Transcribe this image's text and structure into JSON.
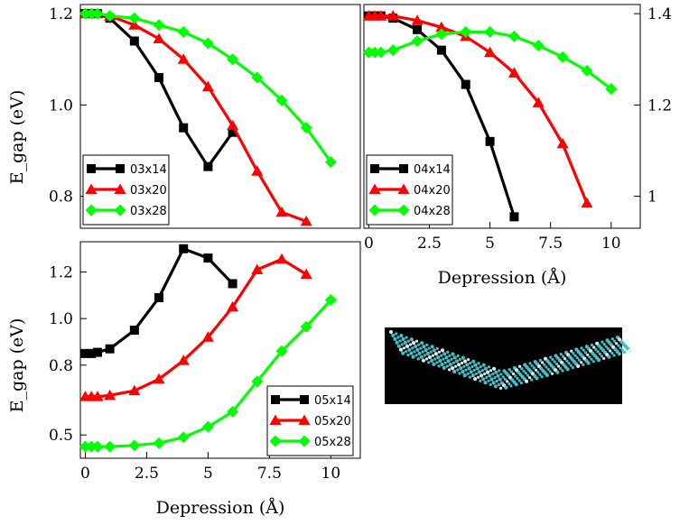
{
  "chart_data": [
    {
      "type": "line",
      "panel": "top-left",
      "title": "",
      "xlabel": "",
      "ylabel": "E_gap (eV)",
      "xlim": [
        -0.2,
        11.2
      ],
      "ylim": [
        0.73,
        1.22
      ],
      "x_ticks": [],
      "y_ticks": [
        0.8,
        1.0,
        1.2
      ],
      "y_tick_labels": [
        "0.8",
        "1.0",
        "1.2"
      ],
      "grid": false,
      "legend_position": "bottom-left",
      "series": [
        {
          "name": "03x14",
          "color": "#000000",
          "marker": "square",
          "x": [
            0,
            0.25,
            0.5,
            1,
            2,
            3,
            4,
            5,
            6
          ],
          "y": [
            1.2,
            1.2,
            1.2,
            1.19,
            1.14,
            1.06,
            0.95,
            0.865,
            0.94
          ]
        },
        {
          "name": "03x20",
          "color": "#ff0000",
          "marker": "triangle",
          "x": [
            0,
            0.25,
            0.5,
            1,
            2,
            3,
            4,
            5,
            6,
            7,
            8,
            9
          ],
          "y": [
            1.2,
            1.2,
            1.2,
            1.195,
            1.175,
            1.145,
            1.1,
            1.04,
            0.955,
            0.855,
            0.765,
            0.745
          ]
        },
        {
          "name": "03x28",
          "color": "#00ff00",
          "marker": "diamond",
          "x": [
            0,
            0.25,
            0.5,
            1,
            2,
            3,
            4,
            5,
            6,
            7,
            8,
            9,
            10
          ],
          "y": [
            1.2,
            1.2,
            1.2,
            1.195,
            1.19,
            1.175,
            1.16,
            1.135,
            1.1,
            1.06,
            1.01,
            0.95,
            0.875
          ]
        }
      ]
    },
    {
      "type": "line",
      "panel": "top-right",
      "title": "",
      "xlabel": "Depression (Å)",
      "ylabel": "",
      "xlim": [
        -0.2,
        11.2
      ],
      "ylim": [
        0.93,
        1.42
      ],
      "x_ticks": [
        0,
        2.5,
        5,
        7.5,
        10
      ],
      "x_tick_labels": [
        "0",
        "2.5",
        "5",
        "7.5",
        "10"
      ],
      "y_ticks": [
        1.0,
        1.2,
        1.4
      ],
      "y_tick_labels": [
        "1",
        "1.2",
        "1.4"
      ],
      "y_axis_side": "right",
      "grid": false,
      "legend_position": "bottom-left",
      "series": [
        {
          "name": "04x14",
          "color": "#000000",
          "marker": "square",
          "x": [
            0,
            0.25,
            0.5,
            1,
            2,
            3,
            4,
            5,
            6
          ],
          "y": [
            1.395,
            1.395,
            1.395,
            1.39,
            1.365,
            1.32,
            1.245,
            1.12,
            0.955
          ]
        },
        {
          "name": "04x20",
          "color": "#ff0000",
          "marker": "triangle",
          "x": [
            0,
            0.25,
            0.5,
            1,
            2,
            3,
            4,
            5,
            6,
            7,
            8,
            9
          ],
          "y": [
            1.395,
            1.395,
            1.395,
            1.395,
            1.385,
            1.37,
            1.35,
            1.315,
            1.27,
            1.205,
            1.115,
            0.985
          ]
        },
        {
          "name": "04x28",
          "color": "#00ff00",
          "marker": "diamond",
          "x": [
            0,
            0.25,
            0.5,
            1,
            2,
            3,
            4,
            5,
            6,
            7,
            8,
            9,
            10
          ],
          "y": [
            1.315,
            1.315,
            1.315,
            1.32,
            1.34,
            1.355,
            1.36,
            1.36,
            1.35,
            1.33,
            1.305,
            1.275,
            1.235
          ]
        }
      ]
    },
    {
      "type": "line",
      "panel": "bottom-left",
      "title": "",
      "xlabel": "Depression (Å)",
      "ylabel": "E_gap (eV)",
      "xlim": [
        -0.2,
        11.2
      ],
      "ylim": [
        0.4,
        1.33
      ],
      "x_ticks": [
        0,
        2.5,
        5,
        7.5,
        10
      ],
      "x_tick_labels": [
        "0",
        "2.5",
        "5",
        "7.5",
        "10"
      ],
      "y_ticks": [
        0.5,
        0.8,
        1.0,
        1.2
      ],
      "y_tick_labels": [
        "0.5",
        "0.8",
        "1.0",
        "1.2"
      ],
      "grid": false,
      "legend_position": "bottom-right",
      "series": [
        {
          "name": "05x14",
          "color": "#000000",
          "marker": "square",
          "x": [
            0,
            0.25,
            0.5,
            1,
            2,
            3,
            4,
            5,
            6
          ],
          "y": [
            0.85,
            0.85,
            0.855,
            0.87,
            0.95,
            1.09,
            1.3,
            1.26,
            1.15
          ]
        },
        {
          "name": "05x20",
          "color": "#ff0000",
          "marker": "triangle",
          "x": [
            0,
            0.25,
            0.5,
            1,
            2,
            3,
            4,
            5,
            6,
            7,
            8,
            9
          ],
          "y": [
            0.665,
            0.665,
            0.665,
            0.67,
            0.69,
            0.74,
            0.82,
            0.92,
            1.05,
            1.21,
            1.255,
            1.19
          ]
        },
        {
          "name": "05x28",
          "color": "#00ff00",
          "marker": "diamond",
          "x": [
            0,
            0.25,
            0.5,
            1,
            2,
            3,
            4,
            5,
            6,
            7,
            8,
            9,
            10
          ],
          "y": [
            0.45,
            0.45,
            0.45,
            0.45,
            0.455,
            0.465,
            0.49,
            0.535,
            0.6,
            0.73,
            0.86,
            0.965,
            1.08
          ]
        }
      ]
    }
  ],
  "inset": {
    "description_icon": "ribbon-structure-render",
    "background_color": "#000000",
    "atom_color": "#40c0c8",
    "bond_color": "#e8e8e8"
  }
}
